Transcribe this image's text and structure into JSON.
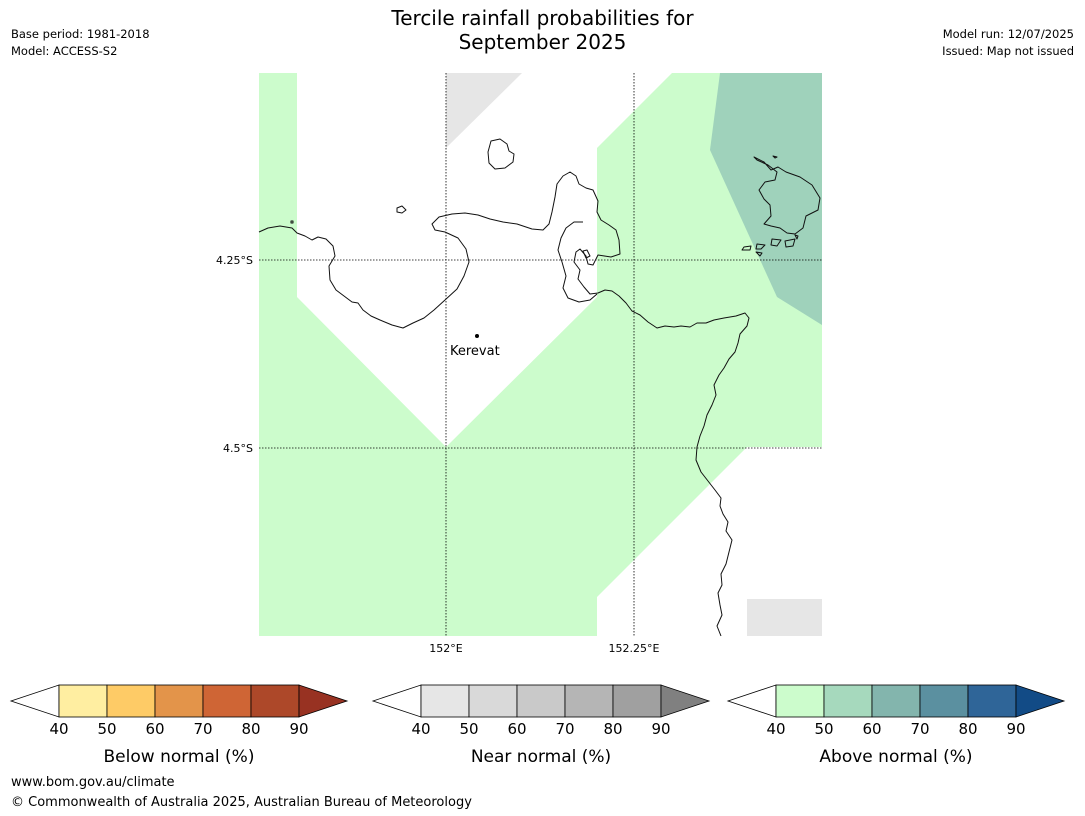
{
  "header": {
    "title_line1": "Tercile rainfall probabilities for",
    "title_line2": "September 2025",
    "base_period": "Base period: 1981-2018",
    "model": "Model: ACCESS-S2",
    "model_run": "Model run: 12/07/2025",
    "issued": "Issued: Map not issued"
  },
  "map": {
    "lat_labels": [
      "4.25°S",
      "4.5°S"
    ],
    "lon_labels": [
      "152°E",
      "152.25°E"
    ],
    "place": "Kerevat",
    "colors": {
      "above_40_50": "#ccfccc",
      "above_50_60": "#9fd2bb",
      "near_40_50": "#e6e6e6",
      "coast": "#111111"
    }
  },
  "colorbars": [
    {
      "label": "Below normal (%)",
      "ticks": [
        "40",
        "50",
        "60",
        "70",
        "80",
        "90"
      ],
      "colors": [
        "#ffeea1",
        "#fecb66",
        "#e3944a",
        "#cf6535",
        "#ad4829"
      ],
      "extend_low": "#ffffff",
      "extend_high": "#983222"
    },
    {
      "label": "Near normal (%)",
      "ticks": [
        "40",
        "50",
        "60",
        "70",
        "80",
        "90"
      ],
      "colors": [
        "#e6e6e6",
        "#d9d9d9",
        "#c9c9c9",
        "#b5b5b5",
        "#a0a0a0"
      ],
      "extend_low": "#ffffff",
      "extend_high": "#808080"
    },
    {
      "label": "Above normal (%)",
      "ticks": [
        "40",
        "50",
        "60",
        "70",
        "80",
        "90"
      ],
      "colors": [
        "#ccfccc",
        "#a6d9bd",
        "#83b5ad",
        "#5b90a0",
        "#2f6598"
      ],
      "extend_low": "#ffffff",
      "extend_high": "#124b86"
    }
  ],
  "footer": {
    "url": "www.bom.gov.au/climate",
    "copyright": "© Commonwealth of Australia 2025, Australian Bureau of Meteorology"
  }
}
